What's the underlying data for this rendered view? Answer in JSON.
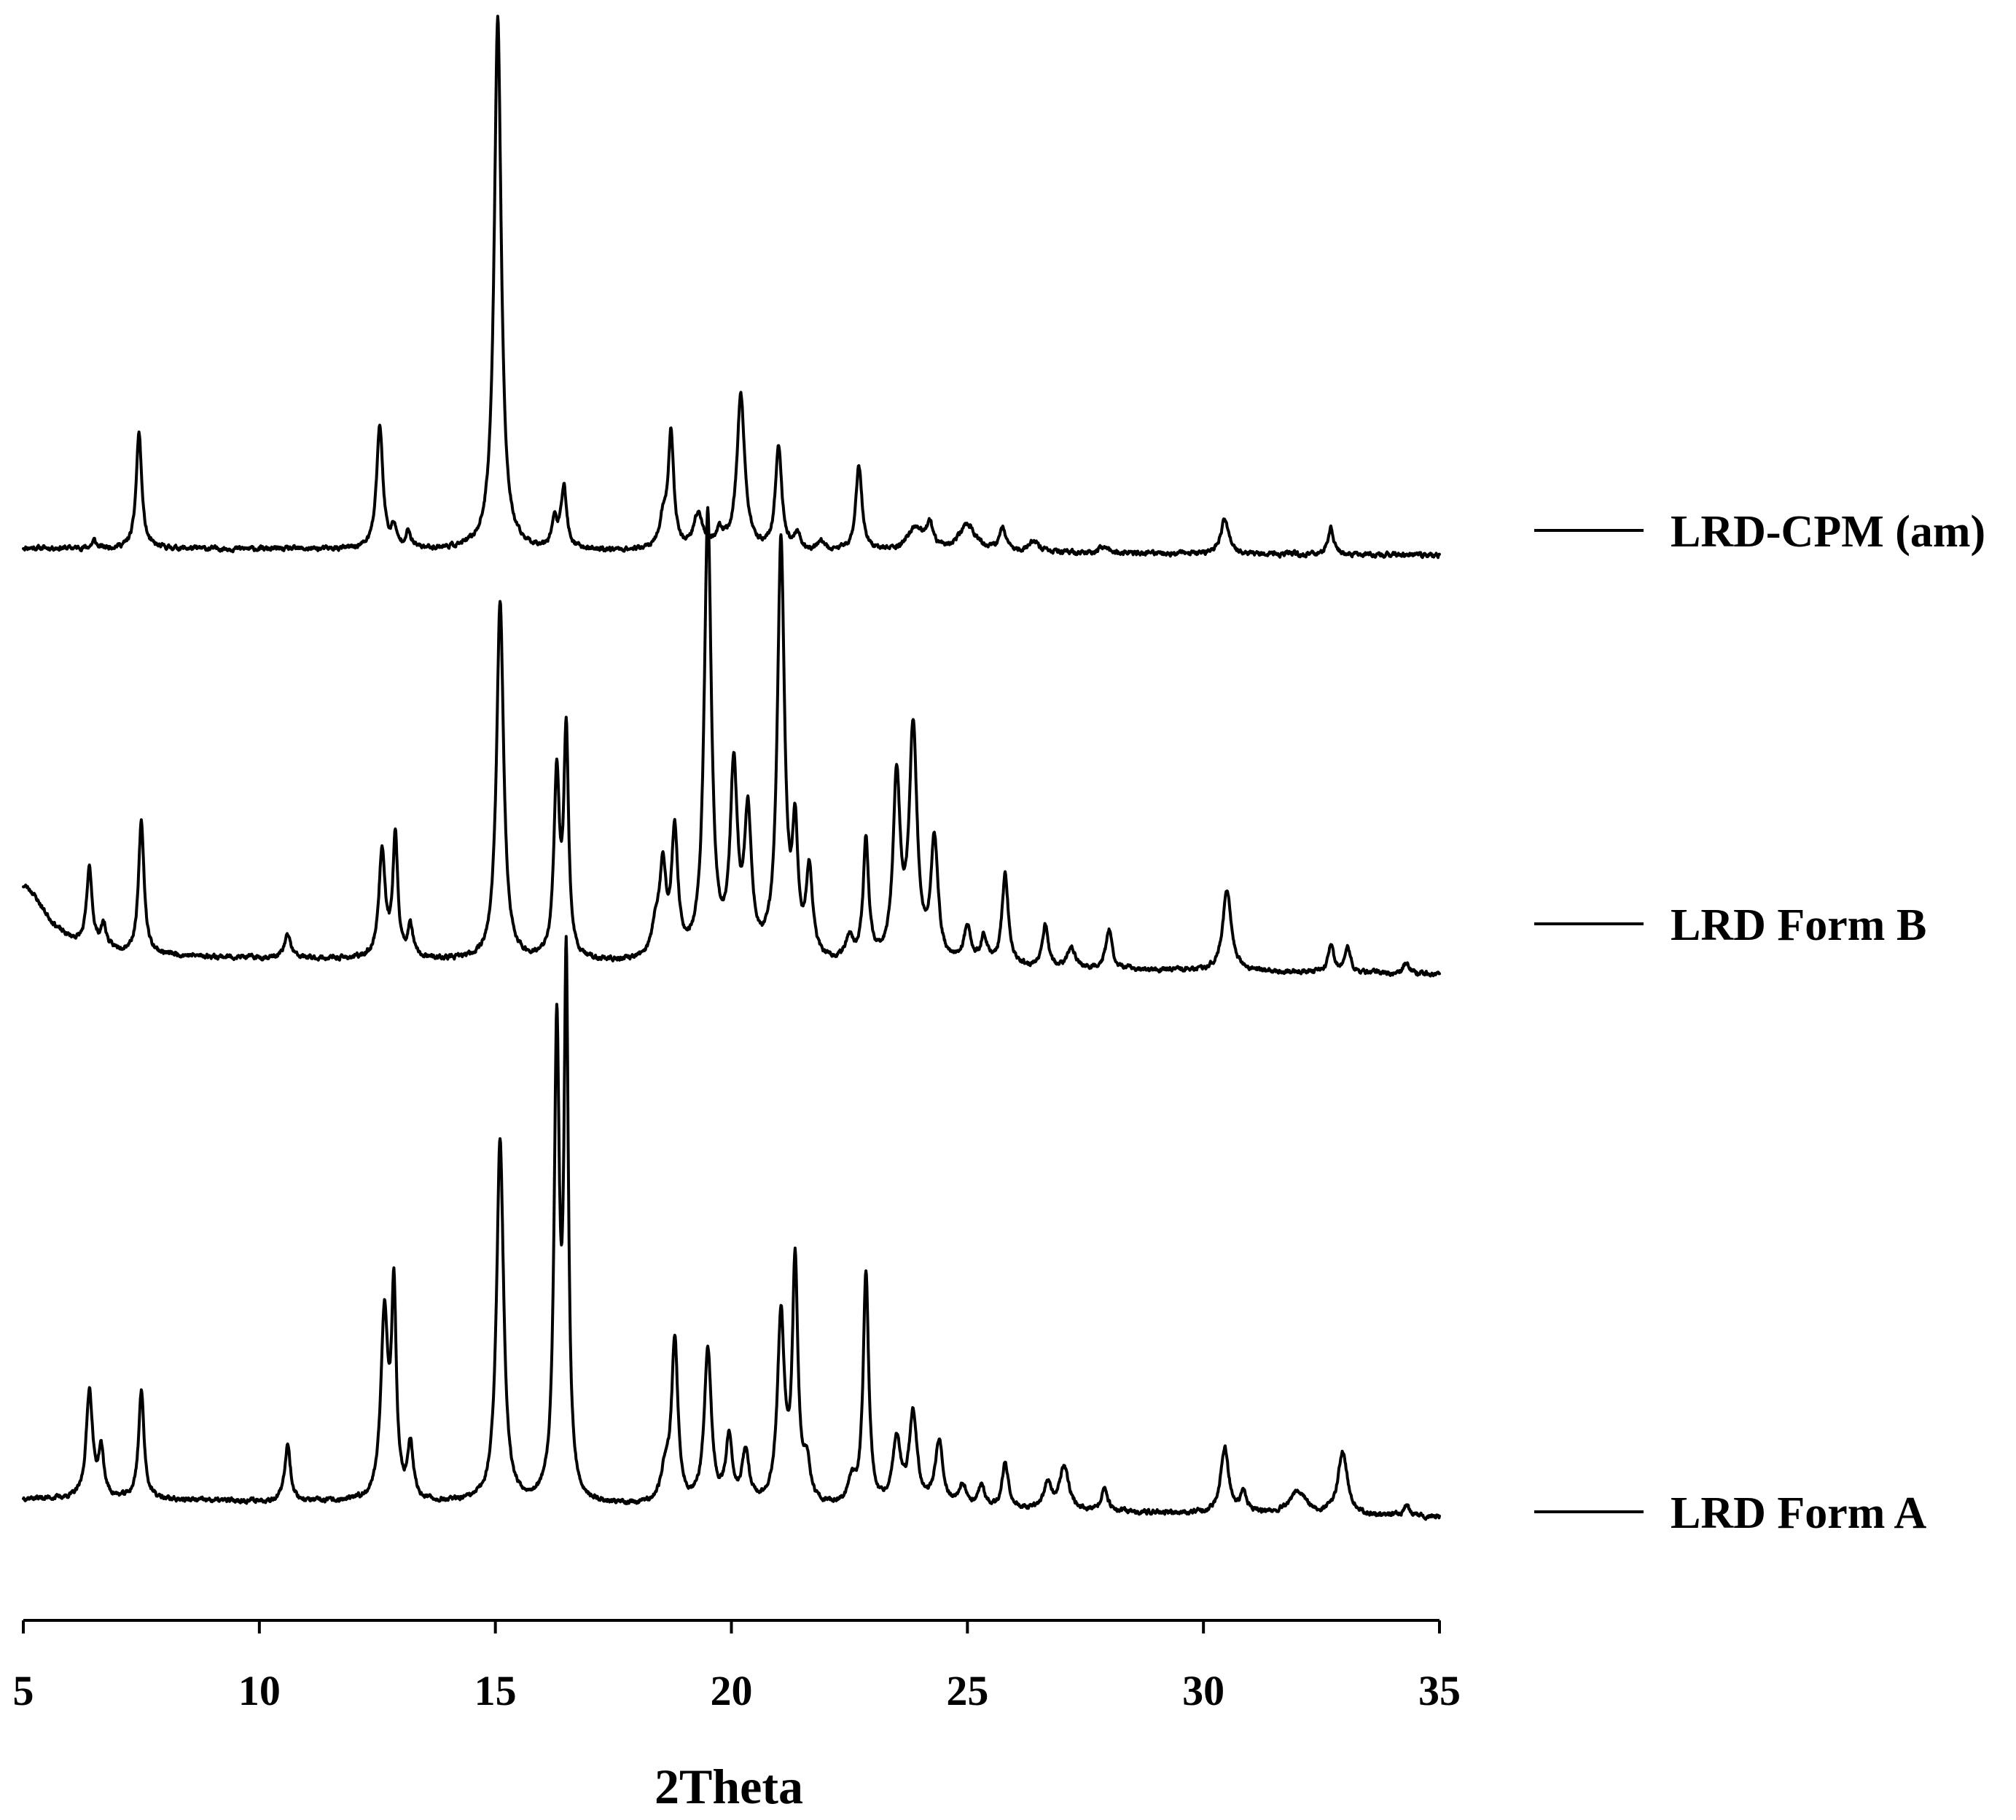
{
  "chart_data": {
    "type": "line",
    "xlabel": "2Theta",
    "xlim": [
      5,
      35
    ],
    "xticks": [
      5,
      10,
      15,
      20,
      25,
      30,
      35
    ],
    "yaxis_shown": false,
    "grid": false,
    "legend_placement": "right",
    "colors": {
      "trace": "#000000",
      "background": "#ffffff"
    },
    "series": [
      {
        "name": "LRD-CPM (am)",
        "baseline": 0.03,
        "peaks": [
          [
            6.5,
            0.02,
            0.05
          ],
          [
            7.45,
            0.3,
            0.07
          ],
          [
            12.55,
            0.32,
            0.08
          ],
          [
            12.85,
            0.05,
            0.06
          ],
          [
            13.15,
            0.04,
            0.07
          ],
          [
            15.05,
            1.38,
            0.09
          ],
          [
            16.25,
            0.07,
            0.07
          ],
          [
            16.45,
            0.16,
            0.07
          ],
          [
            18.55,
            0.07,
            0.09
          ],
          [
            18.72,
            0.3,
            0.07
          ],
          [
            19.3,
            0.09,
            0.12
          ],
          [
            19.75,
            0.04,
            0.1
          ],
          [
            20.2,
            0.4,
            0.1
          ],
          [
            21.0,
            0.27,
            0.08
          ],
          [
            21.4,
            0.04,
            0.07
          ],
          [
            21.9,
            0.02,
            0.08
          ],
          [
            22.7,
            0.22,
            0.08
          ],
          [
            23.9,
            0.06,
            0.2
          ],
          [
            24.2,
            0.06,
            0.08
          ],
          [
            25.0,
            0.07,
            0.22
          ],
          [
            25.75,
            0.06,
            0.08
          ],
          [
            26.4,
            0.03,
            0.12
          ],
          [
            27.9,
            0.02,
            0.1
          ],
          [
            30.45,
            0.09,
            0.1
          ],
          [
            32.7,
            0.07,
            0.07
          ]
        ]
      },
      {
        "name": "LRD Form B",
        "baseline": 0.03,
        "peaks": [
          [
            5.0,
            0.18,
            0.6
          ],
          [
            6.4,
            0.2,
            0.07
          ],
          [
            6.7,
            0.06,
            0.07
          ],
          [
            7.5,
            0.34,
            0.07
          ],
          [
            10.6,
            0.06,
            0.08
          ],
          [
            12.6,
            0.28,
            0.08
          ],
          [
            12.88,
            0.32,
            0.06
          ],
          [
            13.2,
            0.08,
            0.07
          ],
          [
            15.1,
            0.93,
            0.09
          ],
          [
            16.3,
            0.47,
            0.07
          ],
          [
            16.5,
            0.58,
            0.06
          ],
          [
            18.4,
            0.08,
            0.1
          ],
          [
            18.55,
            0.22,
            0.08
          ],
          [
            18.8,
            0.32,
            0.08
          ],
          [
            19.5,
            1.15,
            0.09
          ],
          [
            20.05,
            0.48,
            0.09
          ],
          [
            20.35,
            0.36,
            0.09
          ],
          [
            21.05,
            1.08,
            0.09
          ],
          [
            21.35,
            0.3,
            0.07
          ],
          [
            21.65,
            0.23,
            0.08
          ],
          [
            22.5,
            0.06,
            0.1
          ],
          [
            22.85,
            0.31,
            0.07
          ],
          [
            23.5,
            0.47,
            0.09
          ],
          [
            23.85,
            0.6,
            0.1
          ],
          [
            24.3,
            0.31,
            0.09
          ],
          [
            25.0,
            0.09,
            0.1
          ],
          [
            25.35,
            0.07,
            0.08
          ],
          [
            25.8,
            0.24,
            0.08
          ],
          [
            26.65,
            0.11,
            0.07
          ],
          [
            27.2,
            0.05,
            0.1
          ],
          [
            28.0,
            0.1,
            0.08
          ],
          [
            30.5,
            0.21,
            0.11
          ],
          [
            32.7,
            0.07,
            0.07
          ],
          [
            33.05,
            0.07,
            0.07
          ],
          [
            34.3,
            0.03,
            0.07
          ]
        ]
      },
      {
        "name": "LRD Form A",
        "baseline": 0.04,
        "peaks": [
          [
            6.4,
            0.28,
            0.08
          ],
          [
            6.65,
            0.12,
            0.07
          ],
          [
            7.5,
            0.28,
            0.07
          ],
          [
            10.6,
            0.15,
            0.07
          ],
          [
            12.65,
            0.48,
            0.09
          ],
          [
            12.85,
            0.52,
            0.06
          ],
          [
            13.2,
            0.14,
            0.07
          ],
          [
            15.1,
            0.94,
            0.09
          ],
          [
            16.3,
            1.2,
            0.065
          ],
          [
            16.5,
            1.35,
            0.055
          ],
          [
            18.6,
            0.08,
            0.1
          ],
          [
            18.8,
            0.42,
            0.08
          ],
          [
            19.5,
            0.4,
            0.09
          ],
          [
            19.95,
            0.17,
            0.08
          ],
          [
            20.3,
            0.13,
            0.09
          ],
          [
            21.05,
            0.48,
            0.09
          ],
          [
            21.35,
            0.62,
            0.07
          ],
          [
            21.6,
            0.1,
            0.08
          ],
          [
            22.55,
            0.06,
            0.1
          ],
          [
            22.85,
            0.6,
            0.07
          ],
          [
            23.5,
            0.17,
            0.1
          ],
          [
            23.85,
            0.24,
            0.1
          ],
          [
            24.4,
            0.17,
            0.1
          ],
          [
            24.9,
            0.06,
            0.1
          ],
          [
            25.3,
            0.06,
            0.08
          ],
          [
            25.8,
            0.12,
            0.08
          ],
          [
            26.7,
            0.07,
            0.1
          ],
          [
            27.05,
            0.11,
            0.12
          ],
          [
            27.9,
            0.06,
            0.08
          ],
          [
            30.45,
            0.17,
            0.1
          ],
          [
            30.85,
            0.05,
            0.08
          ],
          [
            32.0,
            0.06,
            0.2
          ],
          [
            32.95,
            0.16,
            0.12
          ],
          [
            34.3,
            0.03,
            0.07
          ]
        ]
      }
    ]
  }
}
